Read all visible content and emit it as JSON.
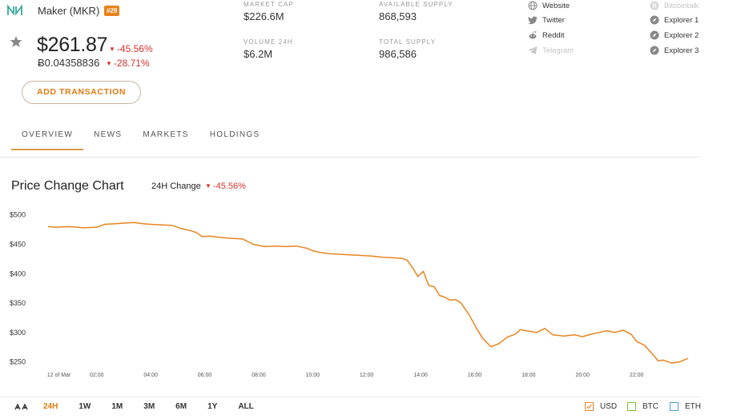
{
  "coin": {
    "name": "Maker (MKR)",
    "rank": "#29",
    "price": "$261.87",
    "price_change": "-45.56%",
    "btc_price": "Éâ¿0.04358836",
    "btc_change": "-28.71%"
  },
  "actions": {
    "add_transaction": "ADD TRANSACTION"
  },
  "stats": {
    "market_cap": {
      "label": "MARKET CAP",
      "value": "$226.6M"
    },
    "volume_24h": {
      "label": "VOLUME 24H",
      "value": "$6.2M"
    },
    "available_supply": {
      "label": "AVAILABLE SUPPLY",
      "value": "868,593"
    },
    "total_supply": {
      "label": "TOTAL SUPPLY",
      "value": "986,586"
    }
  },
  "links": {
    "left": [
      {
        "label": "Website",
        "icon": "globe-icon"
      },
      {
        "label": "Twitter",
        "icon": "twitter-icon"
      },
      {
        "label": "Reddit",
        "icon": "reddit-icon"
      },
      {
        "label": "Telegram",
        "icon": "telegram-icon",
        "disabled": true
      }
    ],
    "right": [
      {
        "label": "Bitcointalk",
        "icon": "bitcoin-icon",
        "disabled": true
      },
      {
        "label": "Explorer 1",
        "icon": "compass-icon"
      },
      {
        "label": "Explorer 2",
        "icon": "compass-icon"
      },
      {
        "label": "Explorer 3",
        "icon": "compass-icon"
      }
    ]
  },
  "tabs": [
    {
      "label": "OVERVIEW",
      "active": true
    },
    {
      "label": "NEWS"
    },
    {
      "label": "MARKETS"
    },
    {
      "label": "HOLDINGS"
    }
  ],
  "chart_section": {
    "title": "Price Change Chart",
    "change_label": "24H Change",
    "change_value": "-45.56%"
  },
  "chart_data": {
    "type": "line",
    "ylim": [
      240,
      505
    ],
    "y_ticks": [
      {
        "value": 500,
        "label": "$500"
      },
      {
        "value": 450,
        "label": "$450"
      },
      {
        "value": 400,
        "label": "$400"
      },
      {
        "value": 350,
        "label": "$350"
      },
      {
        "value": 300,
        "label": "$300"
      },
      {
        "value": 250,
        "label": "$250"
      }
    ],
    "x_ticks": [
      {
        "value": 0.6,
        "label": "12 of Mar"
      },
      {
        "value": 2.0,
        "label": "02:00"
      },
      {
        "value": 4.0,
        "label": "04:00"
      },
      {
        "value": 6.0,
        "label": "06:00"
      },
      {
        "value": 8.0,
        "label": "08:00"
      },
      {
        "value": 10.0,
        "label": "10:00"
      },
      {
        "value": 12.0,
        "label": "12:00"
      },
      {
        "value": 14.0,
        "label": "14:00"
      },
      {
        "value": 16.0,
        "label": "16:00"
      },
      {
        "value": 18.0,
        "label": "18:00"
      },
      {
        "value": 20.0,
        "label": "20:00"
      },
      {
        "value": 22.0,
        "label": "22:00"
      }
    ],
    "xlim": [
      -0.1,
      24.0
    ],
    "line_color": "#e8841f",
    "series": [
      {
        "points": [
          [
            0.2,
            480
          ],
          [
            0.5,
            479
          ],
          [
            1.0,
            480
          ],
          [
            1.5,
            478
          ],
          [
            2.0,
            479
          ],
          [
            2.3,
            484
          ],
          [
            2.7,
            485
          ],
          [
            3.0,
            486
          ],
          [
            3.4,
            487
          ],
          [
            3.7,
            485
          ],
          [
            4.0,
            484
          ],
          [
            4.4,
            483
          ],
          [
            4.8,
            482
          ],
          [
            5.1,
            477
          ],
          [
            5.4,
            474
          ],
          [
            5.7,
            470
          ],
          [
            5.9,
            463
          ],
          [
            6.2,
            464
          ],
          [
            6.5,
            462
          ],
          [
            7.0,
            460
          ],
          [
            7.4,
            459
          ],
          [
            7.8,
            450
          ],
          [
            8.2,
            446
          ],
          [
            8.6,
            447
          ],
          [
            9.0,
            446
          ],
          [
            9.4,
            447
          ],
          [
            9.8,
            443
          ],
          [
            10.0,
            439
          ],
          [
            10.3,
            436
          ],
          [
            10.6,
            434
          ],
          [
            11.0,
            433
          ],
          [
            11.4,
            432
          ],
          [
            11.8,
            431
          ],
          [
            12.2,
            430
          ],
          [
            12.6,
            428
          ],
          [
            13.0,
            427
          ],
          [
            13.3,
            426
          ],
          [
            13.5,
            423
          ],
          [
            13.7,
            410
          ],
          [
            13.9,
            395
          ],
          [
            14.1,
            404
          ],
          [
            14.3,
            380
          ],
          [
            14.5,
            378
          ],
          [
            14.7,
            363
          ],
          [
            14.9,
            360
          ],
          [
            15.1,
            355
          ],
          [
            15.3,
            356
          ],
          [
            15.5,
            350
          ],
          [
            15.8,
            330
          ],
          [
            16.1,
            305
          ],
          [
            16.3,
            290
          ],
          [
            16.6,
            276
          ],
          [
            16.9,
            281
          ],
          [
            17.2,
            292
          ],
          [
            17.5,
            297
          ],
          [
            17.7,
            305
          ],
          [
            17.9,
            303
          ],
          [
            18.3,
            300
          ],
          [
            18.6,
            307
          ],
          [
            18.9,
            296
          ],
          [
            19.3,
            294
          ],
          [
            19.7,
            296
          ],
          [
            20.0,
            293
          ],
          [
            20.3,
            297
          ],
          [
            20.6,
            300
          ],
          [
            20.9,
            303
          ],
          [
            21.2,
            300
          ],
          [
            21.5,
            304
          ],
          [
            21.8,
            297
          ],
          [
            22.0,
            285
          ],
          [
            22.3,
            278
          ],
          [
            22.5,
            268
          ],
          [
            22.8,
            252
          ],
          [
            23.0,
            253
          ],
          [
            23.3,
            248
          ],
          [
            23.6,
            250
          ],
          [
            23.9,
            256
          ]
        ]
      }
    ]
  },
  "range_selector": {
    "options": [
      "24H",
      "1W",
      "1M",
      "3M",
      "6M",
      "1Y",
      "ALL"
    ],
    "active": "24H"
  },
  "currencies": [
    {
      "label": "USD",
      "color": "#e8841f",
      "checked": true
    },
    {
      "label": "BTC",
      "color": "#7bbf3a",
      "checked": false
    },
    {
      "label": "ETH",
      "color": "#4a9fd4",
      "checked": false
    }
  ]
}
